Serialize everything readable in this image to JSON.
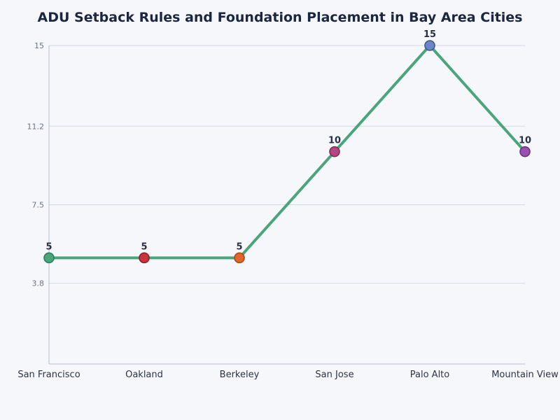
{
  "chart_data": {
    "type": "line",
    "title": "ADU Setback Rules and Foundation Placement in Bay Area Cities",
    "xlabel": "",
    "ylabel": "",
    "categories": [
      "San Francisco",
      "Oakland",
      "Berkeley",
      "San Jose",
      "Palo Alto",
      "Mountain View"
    ],
    "values": [
      5,
      5,
      5,
      10,
      15,
      10
    ],
    "ylim": [
      0,
      15
    ],
    "yticks": [
      3.8,
      7.5,
      11.2,
      15
    ],
    "ytick_labels": [
      "3.8",
      "7.5",
      "11.2",
      "15"
    ],
    "data_labels": [
      "5",
      "5",
      "5",
      "10",
      "15",
      "10"
    ],
    "grid": true,
    "line_color": "#4aa57c",
    "point_colors": [
      "#4aa57c",
      "#c9353f",
      "#e0672a",
      "#b54682",
      "#6b86c4",
      "#9b4fb5"
    ],
    "point_edge_colors": [
      "#2f7f5a",
      "#8f2028",
      "#a84a1d",
      "#7a2f58",
      "#3f5694",
      "#6b3280"
    ]
  }
}
